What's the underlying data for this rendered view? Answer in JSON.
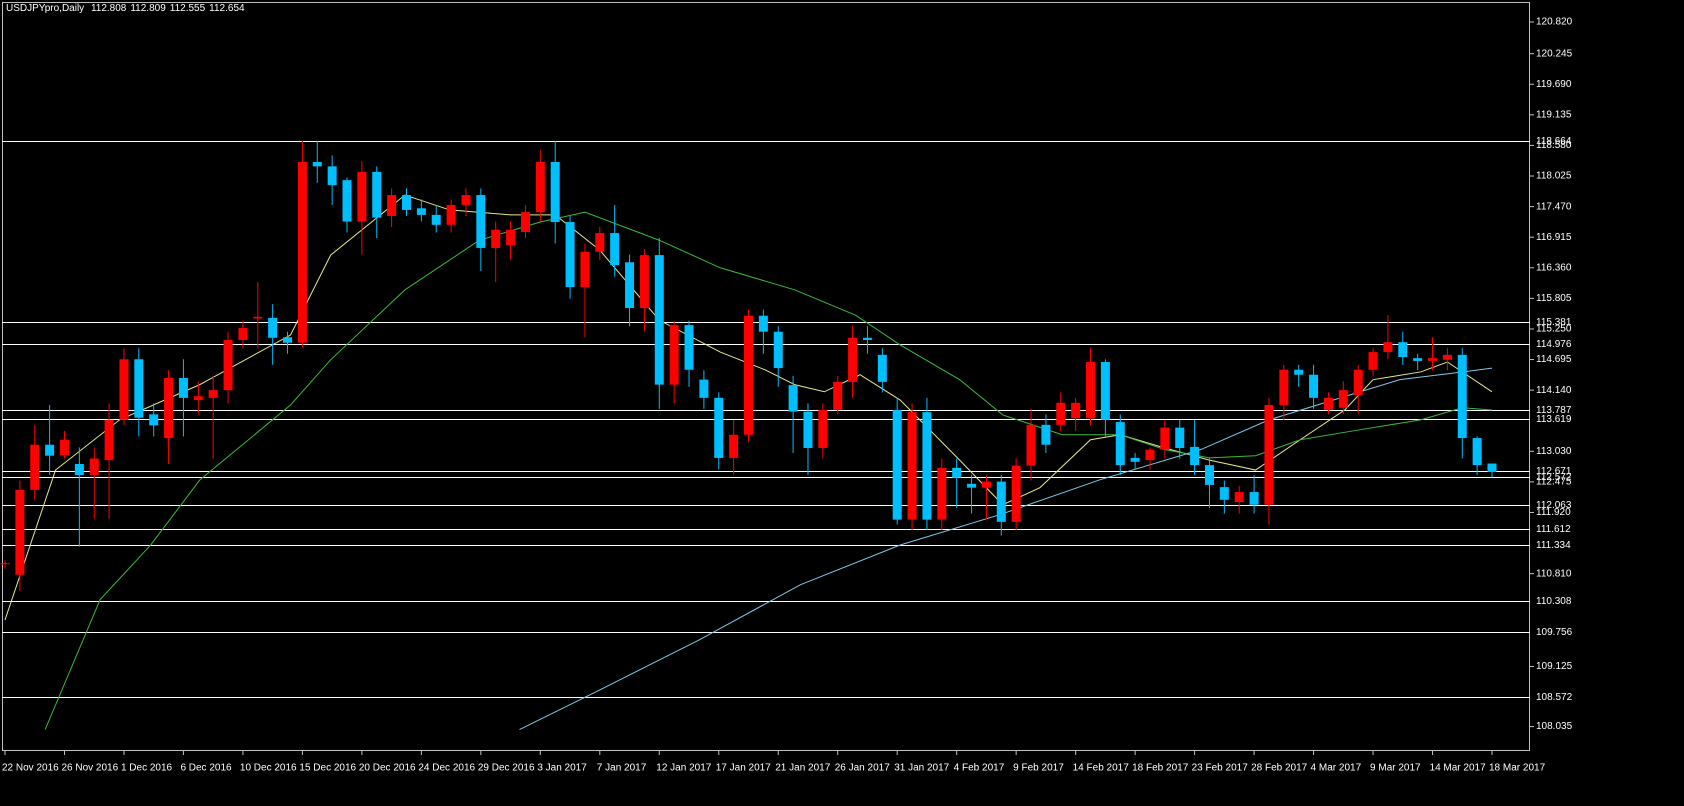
{
  "chart_data": {
    "type": "candlestick",
    "symbol": "USDJPYpro,Daily",
    "header_ohlc": [
      112.808,
      112.809,
      112.555,
      112.654
    ],
    "categories": [
      "22 Nov 2016",
      null,
      null,
      null,
      "26 Nov 2016",
      null,
      null,
      null,
      "1 Dec 2016",
      null,
      null,
      null,
      "6 Dec 2016",
      null,
      null,
      null,
      "10 Dec 2016",
      null,
      null,
      null,
      "15 Dec 2016",
      null,
      null,
      null,
      "20 Dec 2016",
      null,
      null,
      null,
      "24 Dec 2016",
      null,
      null,
      null,
      "29 Dec 2016",
      null,
      null,
      null,
      "3 Jan 2017",
      null,
      null,
      null,
      "7 Jan 2017",
      null,
      null,
      null,
      "12 Jan 2017",
      null,
      null,
      null,
      "17 Jan 2017",
      null,
      null,
      null,
      "21 Jan 2017",
      null,
      null,
      null,
      "26 Jan 2017",
      null,
      null,
      null,
      "31 Jan 2017",
      null,
      null,
      null,
      "4 Feb 2017",
      null,
      null,
      null,
      "9 Feb 2017",
      null,
      null,
      null,
      "14 Feb 2017",
      null,
      null,
      null,
      "18 Feb 2017",
      null,
      null,
      null,
      "23 Feb 2017",
      null,
      null,
      null,
      "28 Feb 2017",
      null,
      null,
      null,
      "4 Mar 2017",
      null,
      null,
      null,
      "9 Mar 2017",
      null,
      null,
      null,
      "14 Mar 2017",
      null,
      null,
      null,
      "18 Mar 2017"
    ],
    "open": [
      110.98,
      110.79,
      112.33,
      113.15,
      112.96,
      112.8,
      112.6,
      112.87,
      113.6,
      114.7,
      113.7,
      113.27,
      114.36,
      113.96,
      114.0,
      114.14,
      115.05,
      115.44,
      115.45,
      115.1,
      115.0,
      118.28,
      118.2,
      117.95,
      117.2,
      118.1,
      117.3,
      117.68,
      117.44,
      117.32,
      117.14,
      117.5,
      117.68,
      116.72,
      116.77,
      117.01,
      117.37,
      118.28,
      117.19,
      116.01,
      116.65,
      116.99,
      116.46,
      115.63,
      116.59,
      114.24,
      115.32,
      114.33,
      114.0,
      112.91,
      113.33,
      115.49,
      115.2,
      114.23,
      113.75,
      113.09,
      113.78,
      114.29,
      115.09,
      114.78,
      113.78,
      111.79,
      113.74,
      111.79,
      112.73,
      112.44,
      112.37,
      112.48,
      111.75,
      112.77,
      113.51,
      113.51,
      113.63,
      113.63,
      114.65,
      113.56,
      112.91,
      112.87,
      113.06,
      113.46,
      113.11,
      112.78,
      112.38,
      112.11,
      112.29,
      112.06,
      113.87,
      114.51,
      114.42,
      113.78,
      113.82,
      114.05,
      114.51,
      114.83,
      115.01,
      114.72,
      114.67,
      114.69,
      114.78,
      113.27,
      112.808
    ],
    "high": [
      111.05,
      112.5,
      113.51,
      113.87,
      113.4,
      113.1,
      113.1,
      113.9,
      114.9,
      114.9,
      113.9,
      114.5,
      114.7,
      114.3,
      114.4,
      115.2,
      115.4,
      116.1,
      115.7,
      115.2,
      118.66,
      118.66,
      118.4,
      118.0,
      118.3,
      118.2,
      117.8,
      117.8,
      117.6,
      117.5,
      117.6,
      117.8,
      117.8,
      117.2,
      117.2,
      117.5,
      118.5,
      118.66,
      117.3,
      116.8,
      117.1,
      117.5,
      116.6,
      116.7,
      116.9,
      115.4,
      115.4,
      114.5,
      114.1,
      113.6,
      115.6,
      115.6,
      115.3,
      114.4,
      113.9,
      113.9,
      114.4,
      115.3,
      115.3,
      114.9,
      114.0,
      113.9,
      114.0,
      112.9,
      112.9,
      112.6,
      112.6,
      112.6,
      112.9,
      113.8,
      113.7,
      114.1,
      114.0,
      114.9,
      114.7,
      113.7,
      113.0,
      113.1,
      113.6,
      113.6,
      113.6,
      112.9,
      112.5,
      112.4,
      112.6,
      114.0,
      114.6,
      114.6,
      114.6,
      114.1,
      114.3,
      114.6,
      114.9,
      115.5,
      115.2,
      114.8,
      115.1,
      114.9,
      114.9,
      113.3,
      112.809
    ],
    "low": [
      110.9,
      110.5,
      112.15,
      112.6,
      112.9,
      111.3,
      111.8,
      111.8,
      113.5,
      113.3,
      113.3,
      112.8,
      113.3,
      113.7,
      112.9,
      113.9,
      114.9,
      114.9,
      114.6,
      114.8,
      114.9,
      117.9,
      117.5,
      117.0,
      116.6,
      116.9,
      117.1,
      117.3,
      117.2,
      117.0,
      117.0,
      117.3,
      116.3,
      116.1,
      116.5,
      116.9,
      117.2,
      116.8,
      115.8,
      115.1,
      116.5,
      116.2,
      115.3,
      115.2,
      113.8,
      113.9,
      114.2,
      113.8,
      112.7,
      112.6,
      113.2,
      114.8,
      114.2,
      113.0,
      112.6,
      112.9,
      113.7,
      114.0,
      114.8,
      114.1,
      111.7,
      111.6,
      111.6,
      111.6,
      112.0,
      111.9,
      111.8,
      111.5,
      111.6,
      112.5,
      113.0,
      113.4,
      113.4,
      113.5,
      113.3,
      112.6,
      112.7,
      112.7,
      112.9,
      112.9,
      112.6,
      112.0,
      111.9,
      111.9,
      111.9,
      111.7,
      113.6,
      114.2,
      113.8,
      113.7,
      113.7,
      113.7,
      114.4,
      114.7,
      114.6,
      114.5,
      114.5,
      114.5,
      112.9,
      112.6,
      112.555
    ],
    "close": [
      111.0,
      112.33,
      113.15,
      112.95,
      113.24,
      112.6,
      112.9,
      113.6,
      114.7,
      113.64,
      113.5,
      114.36,
      114.0,
      114.03,
      114.14,
      115.05,
      115.27,
      115.47,
      115.09,
      115.0,
      118.28,
      118.2,
      117.86,
      117.2,
      118.1,
      117.27,
      117.68,
      117.41,
      117.32,
      117.14,
      117.5,
      117.68,
      116.72,
      117.05,
      117.05,
      117.37,
      118.28,
      117.19,
      116.01,
      116.65,
      116.99,
      116.41,
      115.63,
      116.59,
      114.24,
      115.32,
      114.51,
      114.0,
      112.91,
      113.33,
      115.49,
      115.2,
      114.54,
      113.75,
      113.09,
      113.78,
      114.29,
      115.09,
      115.05,
      114.29,
      111.79,
      113.74,
      111.79,
      112.73,
      112.55,
      112.37,
      112.48,
      111.75,
      112.77,
      113.51,
      113.15,
      113.91,
      113.91,
      114.65,
      113.6,
      112.78,
      112.84,
      113.06,
      113.46,
      113.09,
      112.78,
      112.42,
      112.15,
      112.29,
      112.06,
      113.87,
      114.51,
      114.42,
      114.0,
      114.0,
      114.14,
      114.51,
      114.83,
      115.01,
      114.74,
      114.67,
      114.72,
      114.78,
      113.27,
      112.78,
      112.654
    ],
    "up_color": "#ff0000",
    "down_color": "#00bfff",
    "ylim": [
      107.61,
      121.219
    ],
    "yticks": [
      {
        "value": 120.82,
        "label": "120.820"
      },
      120.245,
      {
        "value": 119.69,
        "label": "119.690"
      },
      119.135,
      {
        "value": 118.58,
        "label": "118.580"
      },
      118.025,
      {
        "value": 117.47,
        "label": "117.470"
      },
      116.915,
      {
        "value": 116.36,
        "label": "116.360"
      },
      115.805,
      {
        "value": 115.25,
        "label": "115.250"
      },
      114.695,
      {
        "value": 114.14,
        "label": "114.140"
      },
      {
        "value": 113.03,
        "label": "113.030"
      },
      112.475,
      {
        "value": 111.92,
        "label": "111.920"
      },
      {
        "value": 110.81,
        "label": "110.810"
      },
      109.125,
      108.035
    ],
    "hlines": [
      118.664,
      115.381,
      114.976,
      113.787,
      113.619,
      112.671,
      112.572,
      112.063,
      111.612,
      111.334,
      110.308,
      109.756,
      108.572
    ],
    "hline_color": "#ffffff",
    "overlays": [
      {
        "color": "#e8e88a",
        "x": [
          0,
          3.4,
          7.7,
          13.1,
          19.2,
          21.9,
          26.9,
          29.9,
          34,
          37,
          40,
          44,
          48.1,
          51.1,
          53.1,
          55.1,
          57.5,
          60.2,
          64.2,
          67.1,
          69.6,
          73,
          75,
          78,
          81,
          84.1,
          87.1,
          90.1,
          92,
          95.2,
          97,
          100
        ],
        "values": [
          109.97,
          112.69,
          113.6,
          114.24,
          115.14,
          116.59,
          117.68,
          117.41,
          117.32,
          117.32,
          116.68,
          115.41,
          114.83,
          114.51,
          114.24,
          114.11,
          114.42,
          113.96,
          112.87,
          112.06,
          112.37,
          113.24,
          113.33,
          113.09,
          112.87,
          112.69,
          113.24,
          113.78,
          114.33,
          114.47,
          114.65,
          114.11
        ]
      },
      {
        "color": "#3cb83c",
        "x": [
          2.7,
          6.4,
          9.8,
          13.1,
          19.2,
          21.9,
          26.9,
          31.9,
          36,
          39,
          44,
          48.1,
          53.1,
          57.2,
          60.2,
          64.2,
          67.1,
          71.1,
          75,
          78,
          81,
          84.1,
          87.1,
          91.1,
          95.2,
          98,
          100
        ],
        "values": [
          107.98,
          110.34,
          111.33,
          112.51,
          113.87,
          114.69,
          115.96,
          116.86,
          117.19,
          117.37,
          116.86,
          116.36,
          115.96,
          115.5,
          114.96,
          114.33,
          113.69,
          113.33,
          113.33,
          113.06,
          112.91,
          112.95,
          113.24,
          113.42,
          113.6,
          113.82,
          113.78
        ]
      },
      {
        "color": "#7ec8e8",
        "x": [
          34.6,
          40,
          46.7,
          53.5,
          60.2,
          66.9,
          73.6,
          80.4,
          85,
          89.8,
          93.8,
          98,
          100
        ],
        "values": [
          107.98,
          108.7,
          109.61,
          110.61,
          111.33,
          111.88,
          112.51,
          113.06,
          113.6,
          114.0,
          114.33,
          114.47,
          114.54
        ]
      }
    ]
  }
}
